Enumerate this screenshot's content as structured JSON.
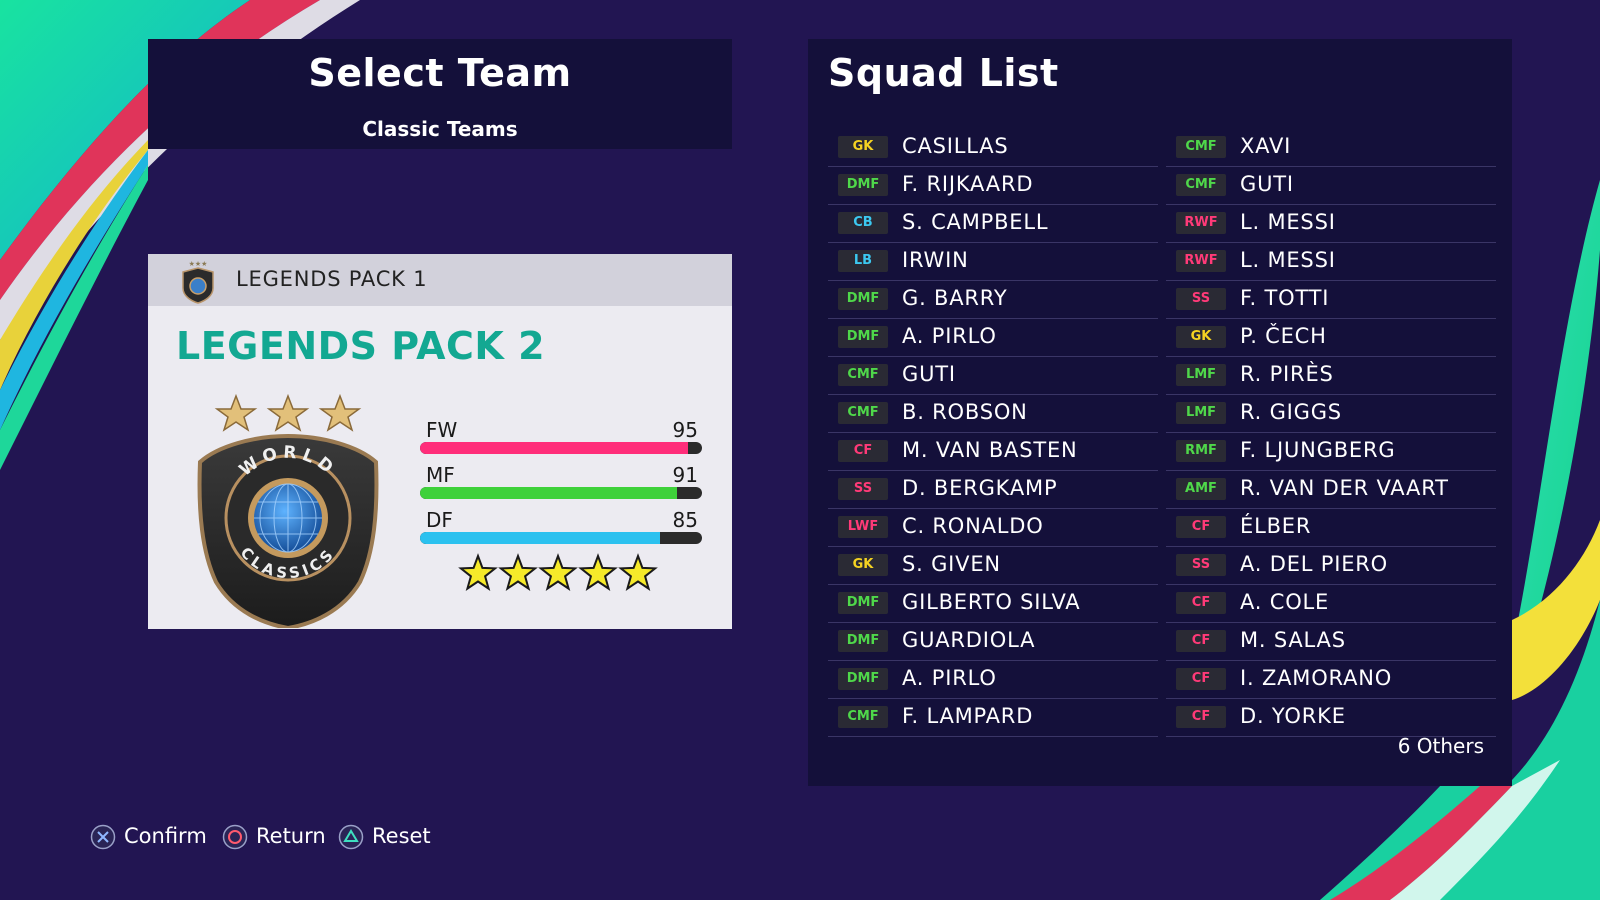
{
  "colors": {
    "background": "#221552",
    "panel": "#14103a",
    "accent_teal": "#13a892",
    "fw_bar": "#ff2d7a",
    "mf_bar": "#3ed13a",
    "df_bar": "#2bc1ef",
    "pos_gk": "#f5d322",
    "pos_def": "#3cc8f0",
    "pos_mid": "#4fd84a",
    "pos_att": "#ff3a78"
  },
  "select_team": {
    "title": "Select Team",
    "subtitle": "Classic Teams"
  },
  "team_card": {
    "header_label": "LEGENDS PACK 1",
    "title": "LEGENDS PACK 2",
    "emblem_icon": "world-classics-emblem",
    "emblem_stars": 3,
    "stats": [
      {
        "label": "FW",
        "value": 95,
        "color": "#ff2d7a"
      },
      {
        "label": "MF",
        "value": 91,
        "color": "#3ed13a"
      },
      {
        "label": "DF",
        "value": 85,
        "color": "#2bc1ef"
      }
    ],
    "rating_stars": 5
  },
  "squad": {
    "title": "Squad List",
    "left": [
      {
        "pos": "GK",
        "name": "CASILLAS",
        "group": "gk"
      },
      {
        "pos": "DMF",
        "name": "F. RIJKAARD",
        "group": "mid"
      },
      {
        "pos": "CB",
        "name": "S. CAMPBELL",
        "group": "def"
      },
      {
        "pos": "LB",
        "name": "IRWIN",
        "group": "def"
      },
      {
        "pos": "DMF",
        "name": "G. BARRY",
        "group": "mid"
      },
      {
        "pos": "DMF",
        "name": "A. PIRLO",
        "group": "mid"
      },
      {
        "pos": "CMF",
        "name": "GUTI",
        "group": "mid"
      },
      {
        "pos": "CMF",
        "name": "B. ROBSON",
        "group": "mid"
      },
      {
        "pos": "CF",
        "name": "M. VAN BASTEN",
        "group": "att"
      },
      {
        "pos": "SS",
        "name": "D. BERGKAMP",
        "group": "att"
      },
      {
        "pos": "LWF",
        "name": "C. RONALDO",
        "group": "att"
      },
      {
        "pos": "GK",
        "name": "S. GIVEN",
        "group": "gk"
      },
      {
        "pos": "DMF",
        "name": "GILBERTO SILVA",
        "group": "mid"
      },
      {
        "pos": "DMF",
        "name": "GUARDIOLA",
        "group": "mid"
      },
      {
        "pos": "DMF",
        "name": "A. PIRLO",
        "group": "mid"
      },
      {
        "pos": "CMF",
        "name": "F. LAMPARD",
        "group": "mid"
      }
    ],
    "right": [
      {
        "pos": "CMF",
        "name": "XAVI",
        "group": "mid"
      },
      {
        "pos": "CMF",
        "name": "GUTI",
        "group": "mid"
      },
      {
        "pos": "RWF",
        "name": "L. MESSI",
        "group": "att"
      },
      {
        "pos": "RWF",
        "name": "L. MESSI",
        "group": "att"
      },
      {
        "pos": "SS",
        "name": "F. TOTTI",
        "group": "att"
      },
      {
        "pos": "GK",
        "name": "P. ČECH",
        "group": "gk"
      },
      {
        "pos": "LMF",
        "name": "R. PIRÈS",
        "group": "mid"
      },
      {
        "pos": "LMF",
        "name": "R. GIGGS",
        "group": "mid"
      },
      {
        "pos": "RMF",
        "name": "F. LJUNGBERG",
        "group": "mid"
      },
      {
        "pos": "AMF",
        "name": "R. VAN DER VAART",
        "group": "mid"
      },
      {
        "pos": "CF",
        "name": "ÉLBER",
        "group": "att"
      },
      {
        "pos": "SS",
        "name": "A. DEL PIERO",
        "group": "att"
      },
      {
        "pos": "CF",
        "name": "A. COLE",
        "group": "att"
      },
      {
        "pos": "CF",
        "name": "M. SALAS",
        "group": "att"
      },
      {
        "pos": "CF",
        "name": "I. ZAMORANO",
        "group": "att"
      },
      {
        "pos": "CF",
        "name": "D. YORKE",
        "group": "att"
      }
    ],
    "others_label": "6 Others"
  },
  "controls": [
    {
      "icon": "cross-button-icon",
      "label": "Confirm"
    },
    {
      "icon": "circle-button-icon",
      "label": "Return"
    },
    {
      "icon": "triangle-button-icon",
      "label": "Reset"
    }
  ]
}
